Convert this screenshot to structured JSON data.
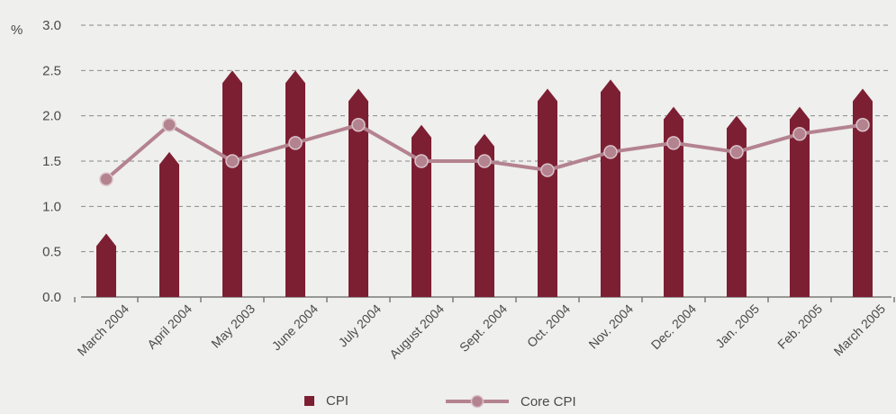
{
  "chart_data": {
    "type": "bar",
    "ylabel": "%",
    "ylim": [
      0,
      3.0
    ],
    "yticks": [
      "0.0",
      "0.5",
      "1.0",
      "1.5",
      "2.0",
      "2.5",
      "3.0"
    ],
    "grid": true,
    "legend_position": "bottom",
    "categories": [
      "March 2004",
      "April 2004",
      "May 2003",
      "June 2004",
      "July 2004",
      "August 2004",
      "Sept. 2004",
      "Oct. 2004",
      "Nov. 2004",
      "Dec. 2004",
      "Jan. 2005",
      "Feb. 2005",
      "March 2005"
    ],
    "series": [
      {
        "name": "CPI",
        "kind": "bar",
        "color": "#7d1f33",
        "values": [
          0.7,
          1.6,
          2.5,
          2.5,
          2.3,
          1.9,
          1.8,
          2.3,
          2.4,
          2.1,
          2.0,
          2.1,
          2.3
        ]
      },
      {
        "name": "Core CPI",
        "kind": "line",
        "color": "#b48390",
        "values": [
          1.3,
          1.9,
          1.5,
          1.7,
          1.9,
          1.5,
          1.5,
          1.4,
          1.6,
          1.7,
          1.6,
          1.8,
          1.9
        ]
      }
    ]
  }
}
